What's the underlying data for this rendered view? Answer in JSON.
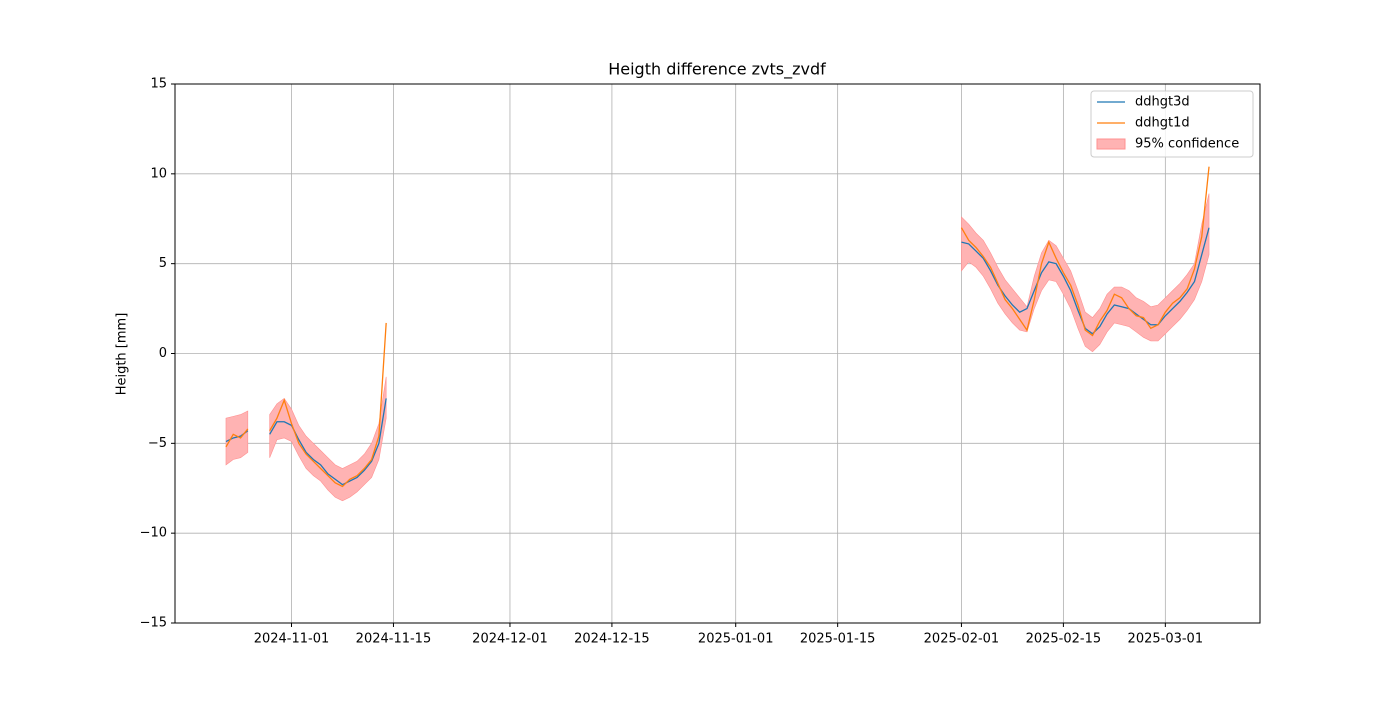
{
  "chart_data": {
    "type": "line",
    "title": "Heigth difference zvts_zvdf",
    "y_label": "Heigth [mm]",
    "x": [
      "2024-10-23",
      "2024-10-24",
      "2024-10-25",
      "2024-10-26",
      "2024-10-27",
      "2024-10-29",
      "2024-10-30",
      "2024-10-31",
      "2024-11-01",
      "2024-11-02",
      "2024-11-03",
      "2024-11-04",
      "2024-11-05",
      "2024-11-06",
      "2024-11-07",
      "2024-11-08",
      "2024-11-09",
      "2024-11-10",
      "2024-11-11",
      "2024-11-12",
      "2024-11-13",
      "2024-11-14",
      "2025-01-01",
      "2025-02-01",
      "2025-02-02",
      "2025-02-03",
      "2025-02-04",
      "2025-02-05",
      "2025-02-06",
      "2025-02-07",
      "2025-02-08",
      "2025-02-09",
      "2025-02-10",
      "2025-02-11",
      "2025-02-12",
      "2025-02-13",
      "2025-02-14",
      "2025-02-15",
      "2025-02-16",
      "2025-02-17",
      "2025-02-18",
      "2025-02-19",
      "2025-02-20",
      "2025-02-21",
      "2025-02-22",
      "2025-02-23",
      "2025-02-24",
      "2025-02-25",
      "2025-02-26",
      "2025-02-27",
      "2025-02-28",
      "2025-03-01",
      "2025-03-02",
      "2025-03-03",
      "2025-03-04",
      "2025-03-05",
      "2025-03-06",
      "2025-03-07"
    ],
    "series": [
      {
        "name": "ddhgt3d",
        "color": "#1f77b4",
        "values": [
          -4.9,
          -4.7,
          -4.6,
          -4.3,
          null,
          -4.5,
          -3.8,
          -3.8,
          -4.0,
          -4.8,
          -5.5,
          -5.9,
          -6.2,
          -6.7,
          -7.0,
          -7.3,
          -7.1,
          -6.9,
          -6.5,
          -6.0,
          -5.0,
          -2.5,
          null,
          6.2,
          6.1,
          5.7,
          5.3,
          4.6,
          3.8,
          3.2,
          2.7,
          2.3,
          2.5,
          3.5,
          4.5,
          5.1,
          5.0,
          4.3,
          3.5,
          2.4,
          1.4,
          1.1,
          1.5,
          2.2,
          2.7,
          2.6,
          2.5,
          2.2,
          1.9,
          1.6,
          1.6,
          2.1,
          2.5,
          2.9,
          3.4,
          4.0,
          5.5,
          7.0
        ]
      },
      {
        "name": "ddhgt1d",
        "color": "#ff7f0e",
        "values": [
          -5.2,
          -4.5,
          -4.7,
          -4.2,
          null,
          -4.3,
          -3.6,
          -2.6,
          -3.9,
          -5.0,
          -5.6,
          -6.0,
          -6.4,
          -6.8,
          -7.2,
          -7.4,
          -7.0,
          -6.8,
          -6.4,
          -5.9,
          -4.6,
          1.7,
          null,
          7.0,
          6.3,
          5.9,
          5.4,
          4.8,
          3.9,
          3.0,
          2.5,
          1.9,
          1.3,
          3.0,
          5.0,
          6.2,
          5.3,
          4.5,
          3.8,
          2.7,
          1.3,
          1.0,
          1.8,
          2.4,
          3.3,
          3.1,
          2.5,
          2.1,
          2.0,
          1.4,
          1.6,
          2.3,
          2.8,
          3.1,
          3.6,
          4.7,
          6.5,
          10.4
        ]
      },
      {
        "name": "95% confidence",
        "color": "#ffb3b3",
        "upper": [
          -3.6,
          -3.5,
          -3.4,
          -3.2,
          null,
          -3.4,
          -2.8,
          -2.5,
          -3.1,
          -4.0,
          -4.6,
          -5.0,
          -5.4,
          -5.8,
          -6.2,
          -6.4,
          -6.2,
          -6.0,
          -5.6,
          -5.0,
          -3.9,
          -1.3,
          null,
          7.6,
          7.2,
          6.7,
          6.3,
          5.6,
          4.8,
          4.1,
          3.6,
          3.1,
          2.6,
          4.3,
          5.6,
          6.3,
          6.0,
          5.3,
          4.6,
          3.5,
          2.3,
          2.0,
          2.5,
          3.3,
          3.7,
          3.7,
          3.5,
          3.1,
          2.9,
          2.6,
          2.7,
          3.1,
          3.5,
          3.9,
          4.4,
          5.0,
          7.2,
          8.9
        ],
        "lower": [
          -6.2,
          -5.9,
          -5.8,
          -5.5,
          null,
          -5.8,
          -4.8,
          -4.7,
          -4.9,
          -5.7,
          -6.4,
          -6.8,
          -7.1,
          -7.6,
          -8.0,
          -8.2,
          -8.0,
          -7.7,
          -7.3,
          -6.9,
          -5.9,
          -3.6,
          null,
          4.6,
          5.1,
          4.8,
          4.3,
          3.6,
          2.8,
          2.2,
          1.7,
          1.3,
          1.2,
          2.5,
          3.5,
          4.1,
          4.0,
          3.3,
          2.5,
          1.4,
          0.4,
          0.1,
          0.5,
          1.2,
          1.7,
          1.6,
          1.5,
          1.2,
          0.9,
          0.7,
          0.7,
          1.1,
          1.5,
          1.9,
          2.4,
          3.0,
          4.0,
          5.5
        ]
      }
    ],
    "xlim": [
      "2024-10-16",
      "2025-03-14"
    ],
    "xticks": [
      "2024-11-01",
      "2024-11-15",
      "2024-12-01",
      "2024-12-15",
      "2025-01-01",
      "2025-01-15",
      "2025-02-01",
      "2025-02-15",
      "2025-03-01"
    ],
    "ylim": [
      -15,
      15
    ],
    "yticks": [
      {
        "value": -15,
        "label": "−15"
      },
      {
        "value": -10,
        "label": "−10"
      },
      {
        "value": -5,
        "label": "−5"
      },
      0,
      5,
      10,
      15
    ],
    "grid": true,
    "legend": "upper right"
  }
}
